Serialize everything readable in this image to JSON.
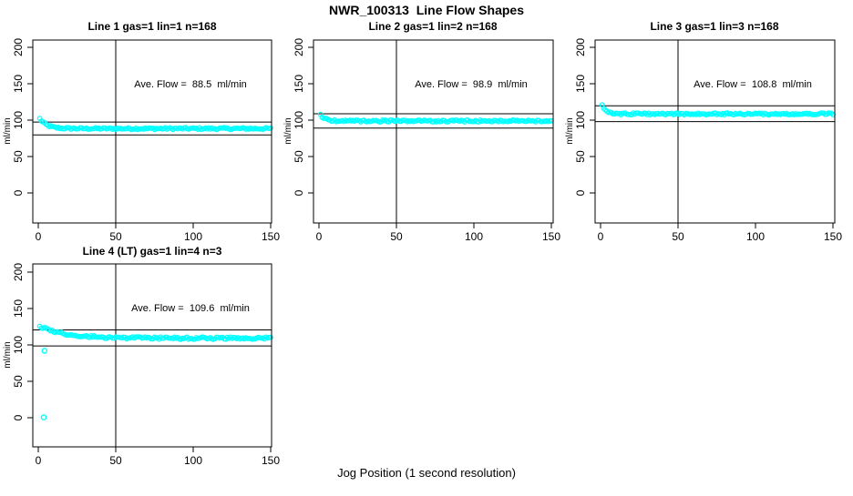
{
  "page": {
    "title": "NWR_100313  Line Flow Shapes",
    "xlabel": "Jog Position (1 second resolution)",
    "background": "#ffffff",
    "axis_color": "#000000",
    "point_shape": "open-circle"
  },
  "chart_data": [
    {
      "type": "scatter",
      "title": "Line 1 gas=1 lin=1 n=168",
      "annotation": "Ave. Flow =  88.5  ml/min",
      "ave_flow_ml_min": 88.5,
      "n_label": 168,
      "ylabel": "ml/min",
      "x_ticks": [
        0,
        50,
        100,
        150
      ],
      "y_ticks": [
        0,
        50,
        100,
        150,
        200
      ],
      "xlim": [
        -4,
        151
      ],
      "ylim": [
        -40,
        210
      ],
      "ref_vline_x": 50,
      "ref_hlines": [
        97.4,
        79.7
      ],
      "series": {
        "name": "flow",
        "x_start": 1,
        "x_end": 150,
        "n_points": 150,
        "start_value": 102,
        "settle_value": 88.4,
        "decay_tau": 4.5,
        "noise": 1.3
      },
      "outliers": [],
      "point_color": "#00FFFF"
    },
    {
      "type": "scatter",
      "title": "Line 2 gas=1 lin=2 n=168",
      "annotation": "Ave. Flow =  98.9  ml/min",
      "ave_flow_ml_min": 98.9,
      "n_label": 168,
      "ylabel": "ml/min",
      "x_ticks": [
        0,
        50,
        100,
        150
      ],
      "y_ticks": [
        0,
        50,
        100,
        150,
        200
      ],
      "xlim": [
        -4,
        151
      ],
      "ylim": [
        -40,
        210
      ],
      "ref_vline_x": 50,
      "ref_hlines": [
        108.8,
        89.0
      ],
      "series": {
        "name": "flow",
        "x_start": 1,
        "x_end": 150,
        "n_points": 150,
        "start_value": 107,
        "settle_value": 98.8,
        "decay_tau": 3,
        "noise": 1.3
      },
      "outliers": [],
      "point_color": "#00FFFF"
    },
    {
      "type": "scatter",
      "title": "Line 3 gas=1 lin=3 n=168",
      "annotation": "Ave. Flow =  108.8  ml/min",
      "ave_flow_ml_min": 108.8,
      "n_label": 168,
      "ylabel": "ml/min",
      "x_ticks": [
        0,
        50,
        100,
        150
      ],
      "y_ticks": [
        0,
        50,
        100,
        150,
        200
      ],
      "xlim": [
        -4,
        151
      ],
      "ylim": [
        -40,
        210
      ],
      "ref_vline_x": 50,
      "ref_hlines": [
        119.7,
        97.9
      ],
      "series": {
        "name": "flow",
        "x_start": 1,
        "x_end": 150,
        "n_points": 150,
        "start_value": 122,
        "settle_value": 108.6,
        "decay_tau": 2.2,
        "noise": 1.3
      },
      "outliers": [],
      "point_color": "#00FFFF"
    },
    {
      "type": "scatter",
      "title": "Line 4 (LT) gas=1 lin=4 n=3",
      "annotation": "Ave. Flow =  109.6  ml/min",
      "ave_flow_ml_min": 109.6,
      "n_label": 3,
      "ylabel": "ml/min",
      "x_ticks": [
        0,
        50,
        100,
        150
      ],
      "y_ticks": [
        0,
        50,
        100,
        150,
        200
      ],
      "xlim": [
        -4,
        151
      ],
      "ylim": [
        -40,
        210
      ],
      "ref_vline_x": 50,
      "ref_hlines": [
        120.6,
        98.6
      ],
      "series": {
        "name": "flow",
        "x_start": 1,
        "x_end": 150,
        "n_points": 150,
        "start_value": 126,
        "settle_value": 109.3,
        "decay_tau": 16,
        "noise": 1.6
      },
      "outliers": [
        [
          4,
          92
        ],
        [
          3.5,
          0.5
        ]
      ],
      "point_color": "#00FFFF"
    }
  ]
}
